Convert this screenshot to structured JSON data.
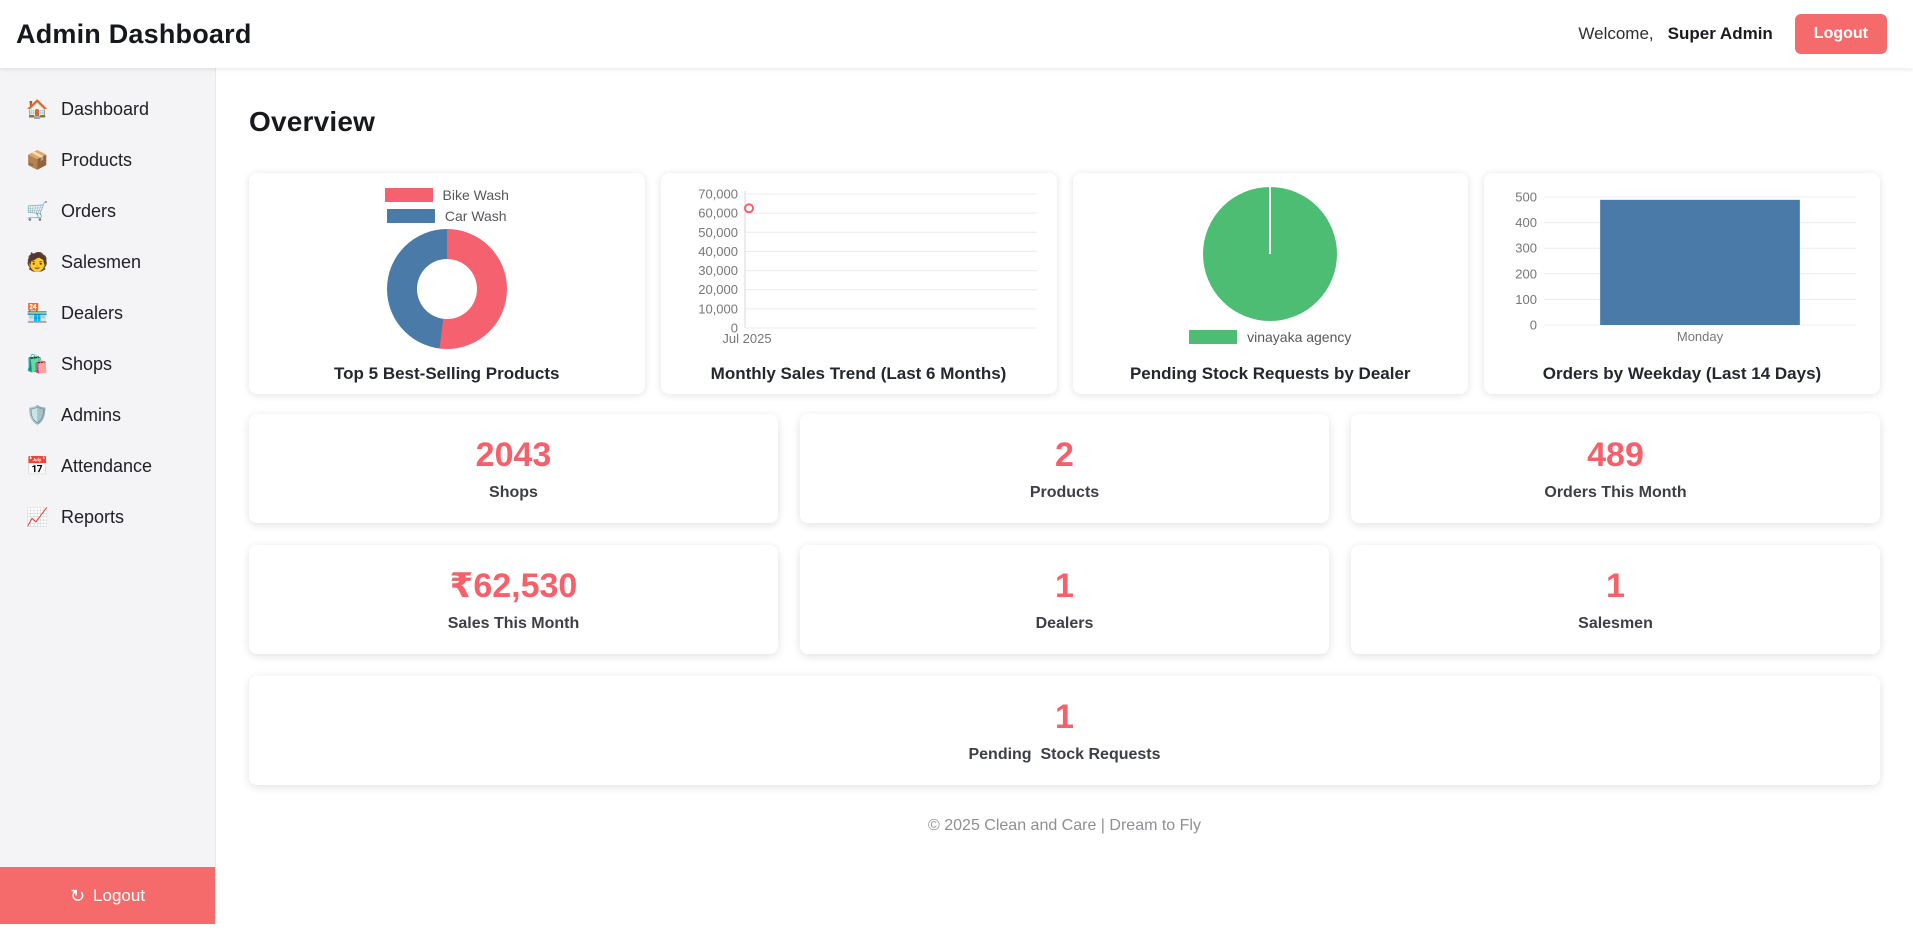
{
  "header": {
    "title": "Admin Dashboard",
    "welcome": "Welcome,",
    "username": "Super Admin",
    "logout_label": "Logout"
  },
  "sidebar": {
    "items": [
      {
        "label": "Dashboard",
        "icon": "home-icon",
        "glyph": "🏠"
      },
      {
        "label": "Products",
        "icon": "package-icon",
        "glyph": "📦"
      },
      {
        "label": "Orders",
        "icon": "cart-icon",
        "glyph": "🛒"
      },
      {
        "label": "Salesmen",
        "icon": "person-icon",
        "glyph": "🧑"
      },
      {
        "label": "Dealers",
        "icon": "store-icon",
        "glyph": "🏪"
      },
      {
        "label": "Shops",
        "icon": "shopping-bags-icon",
        "glyph": "🛍️"
      },
      {
        "label": "Admins",
        "icon": "shield-icon",
        "glyph": "🛡️"
      },
      {
        "label": "Attendance",
        "icon": "calendar-icon",
        "glyph": "📅"
      },
      {
        "label": "Reports",
        "icon": "chart-up-icon",
        "glyph": "📈"
      }
    ],
    "logout": {
      "label": "Logout",
      "icon": "logout-icon",
      "glyph": "↻"
    }
  },
  "page": {
    "heading": "Overview"
  },
  "chart_data": [
    {
      "type": "doughnut",
      "title": "Top 5 Best-Selling Products",
      "labels": [
        "Bike Wash",
        "Car Wash"
      ],
      "values": [
        52,
        48
      ],
      "colors": [
        "#f5616f",
        "#4a7aa7"
      ],
      "legend_position": "top"
    },
    {
      "type": "line",
      "title": "Monthly Sales Trend (Last 6 Months)",
      "x": [
        "Jul 2025"
      ],
      "values": [
        62530
      ],
      "ylim": [
        0,
        70000
      ],
      "ytick_step": 10000,
      "point_color": "#f5616f",
      "grid": true
    },
    {
      "type": "pie",
      "title": "Pending Stock Requests by Dealer",
      "labels": [
        "vinayaka agency"
      ],
      "values": [
        1
      ],
      "colors": [
        "#4dbd74"
      ],
      "legend_position": "bottom"
    },
    {
      "type": "bar",
      "title": "Orders by Weekday (Last 14 Days)",
      "categories": [
        "Monday"
      ],
      "values": [
        489
      ],
      "ylim": [
        0,
        500
      ],
      "ytick_step": 100,
      "bar_color": "#4a7aa7",
      "grid": true
    }
  ],
  "stats": [
    {
      "value": "2043",
      "label": "Shops"
    },
    {
      "value": "2",
      "label": "Products"
    },
    {
      "value": "489",
      "label": "Orders This Month"
    },
    {
      "value": "₹62,530",
      "label": "Sales This Month"
    },
    {
      "value": "1",
      "label": "Dealers"
    },
    {
      "value": "1",
      "label": "Salesmen"
    },
    {
      "value": "1",
      "label": "Pending  Stock Requests",
      "full_width": true
    }
  ],
  "footer": {
    "text": "© 2025 Clean and Care | Dream to Fly"
  },
  "colors": {
    "accent": "#f56b6b",
    "stat_value": "#f5606a",
    "chart_red": "#f5616f",
    "chart_blue": "#4a7aa7",
    "chart_green": "#4dbd74",
    "sidebar_bg": "#f4f4f6"
  }
}
